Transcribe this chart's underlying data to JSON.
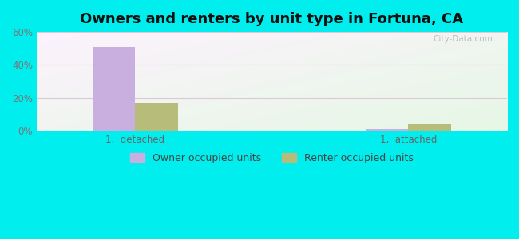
{
  "title": "Owners and renters by unit type in Fortuna, CA",
  "categories": [
    "1,  detached",
    "1,  attached"
  ],
  "owner_values": [
    51,
    1
  ],
  "renter_values": [
    17,
    4
  ],
  "owner_color": "#c9aee0",
  "renter_color": "#b8bc7a",
  "outer_background": "#00eeee",
  "ylim": [
    0,
    60
  ],
  "yticks": [
    0,
    20,
    40,
    60
  ],
  "ytick_labels": [
    "0%",
    "20%",
    "40%",
    "60%"
  ],
  "legend_owner": "Owner occupied units",
  "legend_renter": "Renter occupied units",
  "bar_width": 0.28,
  "title_fontsize": 13,
  "tick_fontsize": 8.5,
  "legend_fontsize": 9,
  "watermark": "City-Data.com",
  "group_centers": [
    0.85,
    2.65
  ],
  "xlim": [
    0.2,
    3.3
  ]
}
